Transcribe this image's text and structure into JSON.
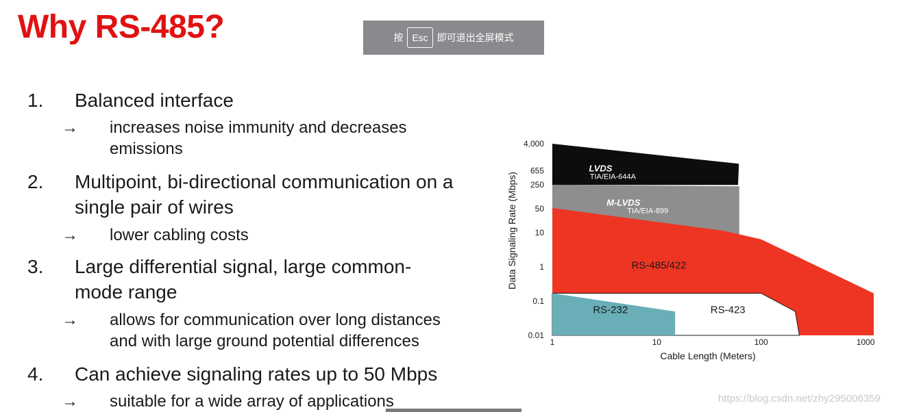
{
  "slide": {
    "title": "Why RS-485?"
  },
  "fullscreen_notice": {
    "prefix": "按",
    "key": "Esc",
    "suffix": "即可退出全屏模式"
  },
  "points": [
    {
      "number": "1.",
      "lines": [
        "Balanced interface"
      ],
      "arrow": "→",
      "sub_lines": [
        "increases noise immunity and decreases",
        "emissions"
      ]
    },
    {
      "number": "2.",
      "lines": [
        "Multipoint, bi-directional communication on a",
        "single pair of wires"
      ],
      "arrow": "→",
      "sub_lines": [
        "lower cabling costs"
      ]
    },
    {
      "number": "3.",
      "lines": [
        "Large differential signal, large common-",
        "mode range"
      ],
      "arrow": "→",
      "sub_lines": [
        "allows for communication over long distances",
        "and with large ground potential differences"
      ]
    },
    {
      "number": "4.",
      "lines": [
        "Can achieve signaling rates up to 50 Mbps"
      ],
      "arrow": "→",
      "sub_lines": [
        "suitable for a wide array of applications"
      ]
    }
  ],
  "chart_data": {
    "type": "area",
    "xlabel": "Cable Length (Meters)",
    "ylabel": "Data Signaling Rate (Mbps)",
    "x_scale": "log",
    "y_scale": "log",
    "x_ticks": [
      "1",
      "10",
      "100",
      "1000"
    ],
    "y_ticks": [
      "4,000",
      "655",
      "250",
      "50",
      "10",
      "1",
      "0.1",
      "0.01"
    ],
    "xlim": [
      1,
      1500
    ],
    "ylim": [
      0.01,
      4000
    ],
    "colors": {
      "lvds": "#0d0d0d",
      "mlvds": "#8e8e8e",
      "rs485": "#ee3524",
      "rs423": "#ffffff",
      "rs232": "#6aaeb8"
    },
    "regions": [
      {
        "name": "LVDS",
        "standard": "TIA/EIA-644A",
        "polygon": [
          [
            1,
            250
          ],
          [
            1,
            4000
          ],
          [
            61.2,
            1035
          ],
          [
            60,
            250
          ]
        ]
      },
      {
        "name": "M-LVDS",
        "standard": "TIA/EIA-899",
        "polygon": [
          [
            1,
            50
          ],
          [
            1,
            250
          ],
          [
            61.7,
            228
          ],
          [
            61.7,
            0.01
          ],
          [
            1,
            0.01
          ]
        ]
      },
      {
        "name": "RS-485/422",
        "standard": "",
        "polygon": [
          [
            1,
            0.01
          ],
          [
            1,
            53
          ],
          [
            44.5,
            11.3
          ],
          [
            100,
            6.4
          ],
          [
            1196,
            0.17
          ],
          [
            1196,
            0.01
          ]
        ]
      },
      {
        "name": "RS-423",
        "standard": "",
        "polygon": [
          [
            1,
            0.01
          ],
          [
            1,
            0.17
          ],
          [
            100,
            0.17
          ],
          [
            212,
            0.05
          ],
          [
            232,
            0.01
          ]
        ]
      },
      {
        "name": "RS-232",
        "standard": "",
        "polygon": [
          [
            1,
            0.01
          ],
          [
            1,
            0.17
          ],
          [
            15,
            0.05
          ],
          [
            15,
            0.01
          ]
        ]
      }
    ]
  },
  "watermark": "https://blog.csdn.net/zhy295006359"
}
